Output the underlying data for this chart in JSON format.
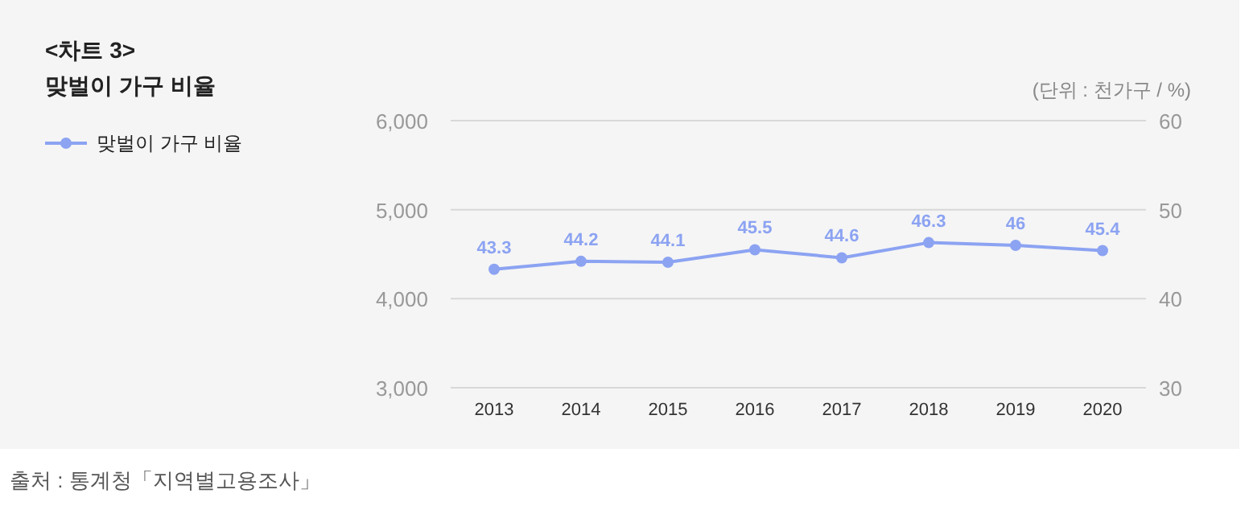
{
  "chart_data": {
    "type": "line",
    "title": "<차트 3>",
    "subtitle": "맞벌이 가구 비율",
    "categories": [
      "2013",
      "2014",
      "2015",
      "2016",
      "2017",
      "2018",
      "2019",
      "2020"
    ],
    "series": [
      {
        "name": "맞벌이 가구 비율",
        "color": "#8ca3f2",
        "axis": "y2",
        "values": [
          43.3,
          44.2,
          44.1,
          45.5,
          44.6,
          46.3,
          46,
          45.4
        ]
      }
    ],
    "ylim": [
      3000,
      6000
    ],
    "yticks": [
      {
        "value": 3000,
        "label": "3,000"
      },
      {
        "value": 4000,
        "label": "4,000"
      },
      {
        "value": 5000,
        "label": "5,000"
      },
      {
        "value": 6000,
        "label": "6,000"
      }
    ],
    "y2lim": [
      30,
      60
    ],
    "y2ticks": [
      30,
      40,
      50,
      60
    ],
    "grid": "y",
    "legend": "top left",
    "marker": "circle",
    "line_style": "solid",
    "data_labels": true,
    "annotations": [
      "(단위 : 천가구 / %)",
      "출처 : 통계청「지역별고용조사」"
    ]
  }
}
